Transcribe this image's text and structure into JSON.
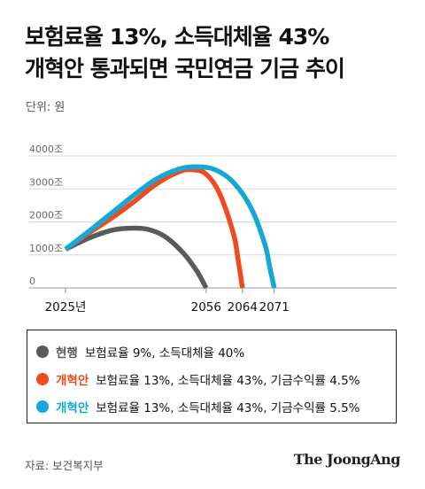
{
  "title_line1": "보험료율 13%, 소득대체율 43%",
  "title_line2": "개혁안 통과되면 국민연금 기금 추이",
  "unit": "단위: 원",
  "chart_data": {
    "type": "line",
    "xlabel": "",
    "ylabel": "",
    "y_ticks": [
      "4000조",
      "3000조",
      "2000조",
      "1000조",
      "0"
    ],
    "y_tick_values": [
      4000,
      3000,
      2000,
      1000,
      0
    ],
    "x_ticks": [
      {
        "value": 2025,
        "label": "2025년"
      },
      {
        "value": 2056,
        "label": "2056"
      },
      {
        "value": 2064,
        "label": "2064"
      },
      {
        "value": 2071,
        "label": "2071"
      }
    ],
    "xlim": [
      2017,
      2098
    ],
    "ylim": [
      0,
      4000
    ],
    "grid": true,
    "series": [
      {
        "name": "현행",
        "color": "#5a5a5a",
        "points": [
          [
            2025,
            1170
          ],
          [
            2030,
            1500
          ],
          [
            2035,
            1740
          ],
          [
            2039,
            1810
          ],
          [
            2043,
            1780
          ],
          [
            2047,
            1550
          ],
          [
            2051,
            1050
          ],
          [
            2054,
            500
          ],
          [
            2056,
            0
          ]
        ]
      },
      {
        "name": "개혁안",
        "color": "#f04a1e",
        "points": [
          [
            2025,
            1170
          ],
          [
            2030,
            1650
          ],
          [
            2035,
            2100
          ],
          [
            2040,
            2600
          ],
          [
            2045,
            3150
          ],
          [
            2050,
            3520
          ],
          [
            2053,
            3580
          ],
          [
            2056,
            3450
          ],
          [
            2059,
            2850
          ],
          [
            2062,
            1650
          ],
          [
            2063,
            900
          ],
          [
            2064,
            0
          ]
        ]
      },
      {
        "name": "개혁안",
        "color": "#14a8d6",
        "points": [
          [
            2025,
            1170
          ],
          [
            2030,
            1700
          ],
          [
            2035,
            2250
          ],
          [
            2040,
            2800
          ],
          [
            2045,
            3300
          ],
          [
            2050,
            3600
          ],
          [
            2054,
            3670
          ],
          [
            2058,
            3580
          ],
          [
            2062,
            3200
          ],
          [
            2066,
            2400
          ],
          [
            2069,
            1300
          ],
          [
            2070,
            650
          ],
          [
            2071,
            0
          ]
        ]
      }
    ]
  },
  "legend": [
    {
      "color": "#5a5a5a",
      "label": "현행",
      "label_color": "#5a5a5a",
      "text": "보험료율 9%, 소득대체율 40%"
    },
    {
      "color": "#f04a1e",
      "label": "개혁안",
      "label_color": "#f04a1e",
      "text": "보험료율 13%, 소득대체율 43%, 기금수익률 4.5%"
    },
    {
      "color": "#14a8d6",
      "label": "개혁안",
      "label_color": "#14a8d6",
      "text": "보험료율 13%, 소득대체율 43%, 기금수익률 5.5%"
    }
  ],
  "source": "자료: 보건복지부",
  "brand": "The JoongAng"
}
